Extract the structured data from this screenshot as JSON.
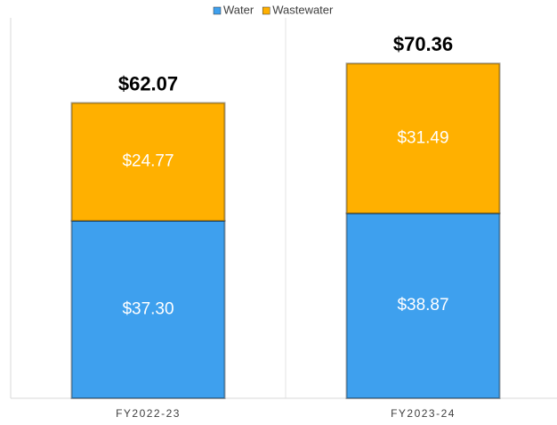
{
  "chart_data": {
    "type": "stacked_bar",
    "categories": [
      "FY2022-23",
      "FY2023-24"
    ],
    "series": [
      {
        "name": "Water",
        "color": "#3ea0ee",
        "values": [
          37.3,
          38.87
        ],
        "value_labels": [
          "$37.30",
          "$38.87"
        ]
      },
      {
        "name": "Wastewater",
        "color": "#ffb000",
        "values": [
          24.77,
          31.49
        ],
        "value_labels": [
          "$24.77",
          "$31.49"
        ]
      }
    ],
    "annotations": [
      "$62.07",
      "$70.36"
    ]
  }
}
